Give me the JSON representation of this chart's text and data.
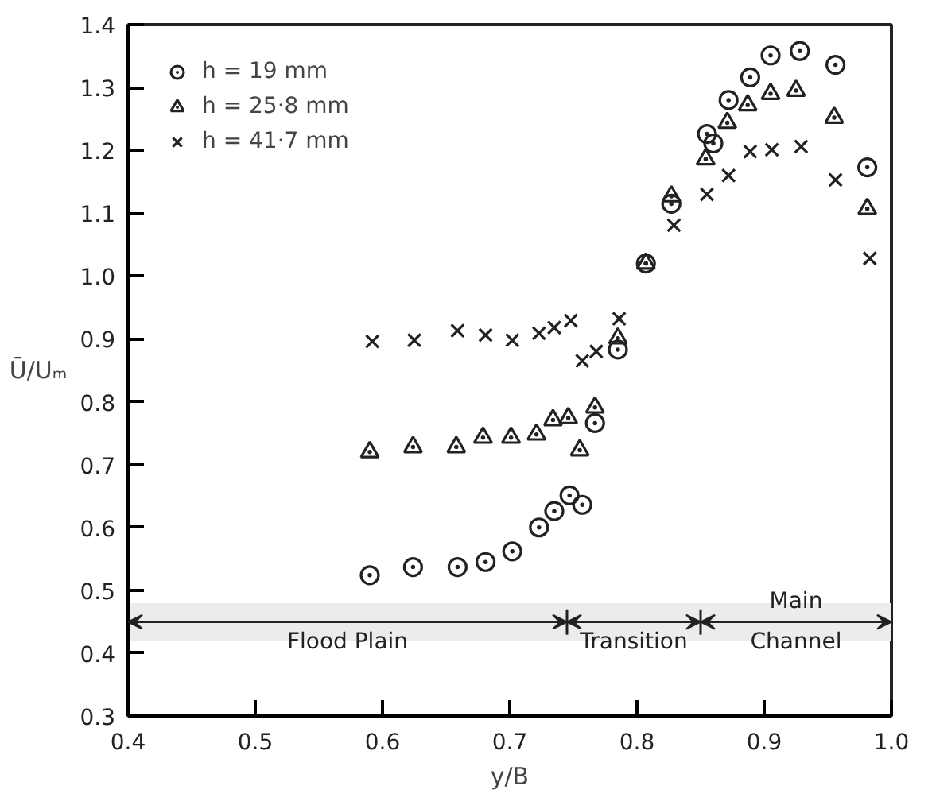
{
  "chart_data": {
    "type": "scatter",
    "xlabel": "y/B",
    "ylabel": "Ū/Uₘ",
    "xlim": [
      0.4,
      1.0
    ],
    "ylim": [
      0.3,
      1.4
    ],
    "xticks": [
      0.4,
      0.5,
      0.6,
      0.7,
      0.8,
      0.9,
      {
        "value": 1.0,
        "label": "1.0"
      }
    ],
    "yticks": [
      0.3,
      0.4,
      0.5,
      0.6,
      0.7,
      0.8,
      0.9,
      {
        "value": 1.0,
        "label": "1.0"
      },
      1.1,
      1.2,
      1.3,
      1.4
    ],
    "grid": false,
    "legend": "top left",
    "series": [
      {
        "name": "h = 19 mm",
        "color": "#222222",
        "marker": "circle",
        "x": [
          0.59,
          0.624,
          0.659,
          0.681,
          0.702,
          0.723,
          0.735,
          0.747,
          0.757,
          0.767,
          0.785,
          0.807,
          0.827,
          0.855,
          0.86,
          0.872,
          0.889,
          0.905,
          0.928,
          0.956,
          0.981
        ],
        "values": [
          0.524,
          0.537,
          0.537,
          0.545,
          0.562,
          0.6,
          0.626,
          0.651,
          0.636,
          0.766,
          0.883,
          1.02,
          1.115,
          1.226,
          1.211,
          1.28,
          1.316,
          1.351,
          1.358,
          1.336,
          1.173
        ]
      },
      {
        "name": "h = 25·8 mm",
        "color": "#222222",
        "marker": "triangle",
        "x": [
          0.59,
          0.624,
          0.658,
          0.679,
          0.701,
          0.721,
          0.734,
          0.746,
          0.755,
          0.767,
          0.785,
          0.807,
          0.827,
          0.854,
          0.871,
          0.887,
          0.905,
          0.925,
          0.955,
          0.981
        ],
        "values": [
          0.72,
          0.728,
          0.728,
          0.743,
          0.743,
          0.748,
          0.771,
          0.774,
          0.723,
          0.791,
          0.901,
          1.02,
          1.127,
          1.186,
          1.244,
          1.272,
          1.29,
          1.295,
          1.252,
          1.107
        ]
      },
      {
        "name": "h = 41·7 mm",
        "color": "#222222",
        "marker": "cross",
        "x": [
          0.592,
          0.625,
          0.659,
          0.681,
          0.702,
          0.723,
          0.735,
          0.748,
          0.757,
          0.768,
          0.786,
          0.829,
          0.855,
          0.872,
          0.889,
          0.906,
          0.929,
          0.956,
          0.983
        ],
        "values": [
          0.896,
          0.898,
          0.913,
          0.906,
          0.898,
          0.909,
          0.918,
          0.929,
          0.865,
          0.88,
          0.932,
          1.081,
          1.13,
          1.16,
          1.198,
          1.201,
          1.206,
          1.153,
          1.028
        ]
      }
    ],
    "bands": [
      {
        "axis": "x",
        "from": 0.4,
        "to": 0.745,
        "label": "Flood Plain",
        "color": "#ececec"
      },
      {
        "axis": "x",
        "from": 0.745,
        "to": 0.85,
        "label": "Transition",
        "color": "#ececec"
      },
      {
        "axis": "x",
        "from": 0.85,
        "to": 1.0,
        "label": "Main\nChannel",
        "color": "#ececec"
      }
    ]
  }
}
